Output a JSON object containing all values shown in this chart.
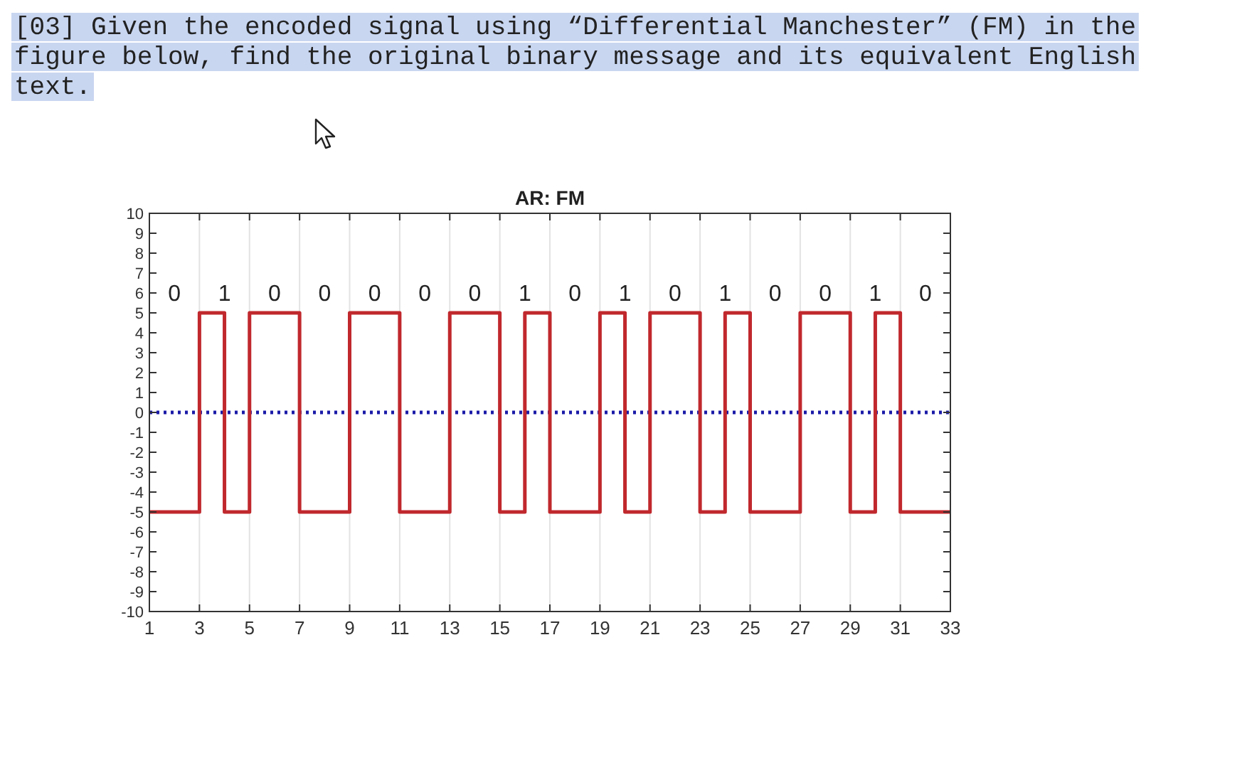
{
  "chart_data": {
    "type": "step",
    "title": "AR: FM",
    "x": [
      1,
      3,
      4,
      5,
      7,
      9,
      11,
      13,
      15,
      16,
      17,
      19,
      20,
      21,
      23,
      24,
      25,
      27,
      29,
      30,
      31,
      33
    ],
    "series": [
      {
        "color": "#c0282d",
        "values": [
          -5,
          5,
          -5,
          5,
          -5,
          5,
          -5,
          5,
          -5,
          5,
          -5,
          5,
          -5,
          5,
          -5,
          5,
          -5,
          5,
          -5,
          5,
          -5,
          -5
        ]
      }
    ],
    "xlim": [
      1,
      33
    ],
    "xticks": [
      1,
      3,
      5,
      7,
      9,
      11,
      13,
      15,
      17,
      19,
      21,
      23,
      25,
      27,
      29,
      31,
      33
    ],
    "ylim": [
      -10,
      10
    ],
    "yticks": [
      -10,
      -9,
      -8,
      -7,
      -6,
      -5,
      -4,
      -3,
      -2,
      -1,
      0,
      1,
      2,
      3,
      4,
      5,
      6,
      7,
      8,
      9,
      10
    ],
    "grid": "x",
    "line_style": "solid",
    "marker": "none",
    "ref_lines": [
      {
        "axis": "y",
        "value": 0,
        "color": "#1a1aa8",
        "line_style": "dotted"
      }
    ],
    "annotations": [
      "[03] Given the encoded signal using “Differential Manchester” (FM) in the figure below, find the original binary message and its equivalent English text.",
      "0",
      "1",
      "0",
      "0",
      "0",
      "0",
      "0",
      "1",
      "0",
      "1",
      "0",
      "1",
      "0",
      "0",
      "1",
      "0"
    ]
  }
}
